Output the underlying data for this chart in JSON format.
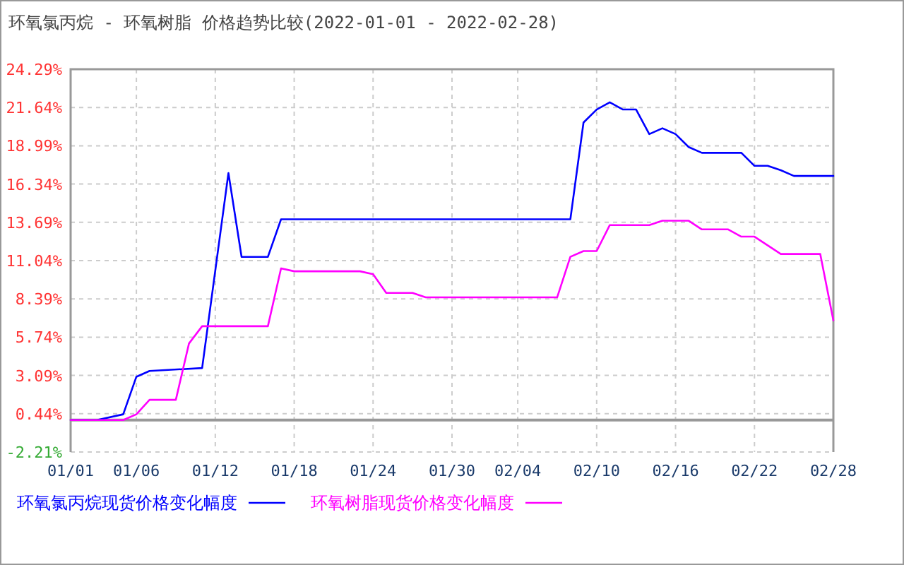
{
  "chart_data": {
    "type": "line",
    "title": "环氧氯丙烷 - 环氧树脂 价格趋势比较(2022-01-01 - 2022-02-28)",
    "series": [
      {
        "name": "环氧氯丙烷现货价格变化幅度",
        "color": "#0000ff",
        "x": [
          "2022-01-01",
          "2022-01-03",
          "2022-01-05",
          "2022-01-06",
          "2022-01-07",
          "2022-01-11",
          "2022-01-13",
          "2022-01-14",
          "2022-01-16",
          "2022-01-17",
          "2022-02-08",
          "2022-02-09",
          "2022-02-10",
          "2022-02-11",
          "2022-02-12",
          "2022-02-13",
          "2022-02-14",
          "2022-02-15",
          "2022-02-16",
          "2022-02-17",
          "2022-02-18",
          "2022-02-21",
          "2022-02-22",
          "2022-02-23",
          "2022-02-24",
          "2022-02-25",
          "2022-02-28"
        ],
        "values": [
          0,
          0,
          0.4,
          3.0,
          3.4,
          3.6,
          17.1,
          11.3,
          11.3,
          13.9,
          13.9,
          20.6,
          21.5,
          22.0,
          21.5,
          21.5,
          19.8,
          20.2,
          19.8,
          18.9,
          18.5,
          18.5,
          17.6,
          17.6,
          17.3,
          16.9,
          16.9
        ]
      },
      {
        "name": "环氧树脂现货价格变化幅度",
        "color": "#ff00ff",
        "x": [
          "2022-01-01",
          "2022-01-05",
          "2022-01-06",
          "2022-01-07",
          "2022-01-09",
          "2022-01-10",
          "2022-01-11",
          "2022-01-16",
          "2022-01-17",
          "2022-01-18",
          "2022-01-23",
          "2022-01-24",
          "2022-01-25",
          "2022-01-27",
          "2022-01-28",
          "2022-02-07",
          "2022-02-08",
          "2022-02-09",
          "2022-02-10",
          "2022-02-11",
          "2022-02-14",
          "2022-02-15",
          "2022-02-17",
          "2022-02-18",
          "2022-02-20",
          "2022-02-21",
          "2022-02-22",
          "2022-02-23",
          "2022-02-24",
          "2022-02-27",
          "2022-02-28"
        ],
        "values": [
          0,
          0,
          0.4,
          1.4,
          1.4,
          5.3,
          6.5,
          6.5,
          10.5,
          10.3,
          10.3,
          10.1,
          8.8,
          8.8,
          8.5,
          8.5,
          11.3,
          11.7,
          11.7,
          13.5,
          13.5,
          13.8,
          13.8,
          13.2,
          13.2,
          12.7,
          12.7,
          12.1,
          11.5,
          11.5,
          6.9
        ]
      }
    ],
    "xlim": [
      "2022-01-01",
      "2022-02-28"
    ],
    "xticks": [
      {
        "value": "2022-01-01",
        "label": "01/01"
      },
      {
        "value": "2022-01-06",
        "label": "01/06"
      },
      {
        "value": "2022-01-12",
        "label": "01/12"
      },
      {
        "value": "2022-01-18",
        "label": "01/18"
      },
      {
        "value": "2022-01-24",
        "label": "01/24"
      },
      {
        "value": "2022-01-30",
        "label": "01/30"
      },
      {
        "value": "2022-02-04",
        "label": "02/04"
      },
      {
        "value": "2022-02-10",
        "label": "02/10"
      },
      {
        "value": "2022-02-16",
        "label": "02/16"
      },
      {
        "value": "2022-02-22",
        "label": "02/22"
      },
      {
        "value": "2022-02-28",
        "label": "02/28"
      }
    ],
    "ylim": [
      -2.21,
      24.29
    ],
    "yticks": [
      {
        "value": -2.21,
        "label": "-2.21%"
      },
      {
        "value": 0.44,
        "label": "0.44%"
      },
      {
        "value": 3.09,
        "label": "3.09%"
      },
      {
        "value": 5.74,
        "label": "5.74%"
      },
      {
        "value": 8.39,
        "label": "8.39%"
      },
      {
        "value": 11.04,
        "label": "11.04%"
      },
      {
        "value": 13.69,
        "label": "13.69%"
      },
      {
        "value": 16.34,
        "label": "16.34%"
      },
      {
        "value": 18.99,
        "label": "18.99%"
      },
      {
        "value": 21.64,
        "label": "21.64%"
      },
      {
        "value": 24.29,
        "label": "24.29%"
      }
    ],
    "ref_lines": [
      {
        "axis": "y",
        "value": 0,
        "color": "#999999",
        "line_style": "solid"
      }
    ],
    "grid": true,
    "legend": "bottom",
    "marker": "none",
    "line_style": "solid"
  }
}
